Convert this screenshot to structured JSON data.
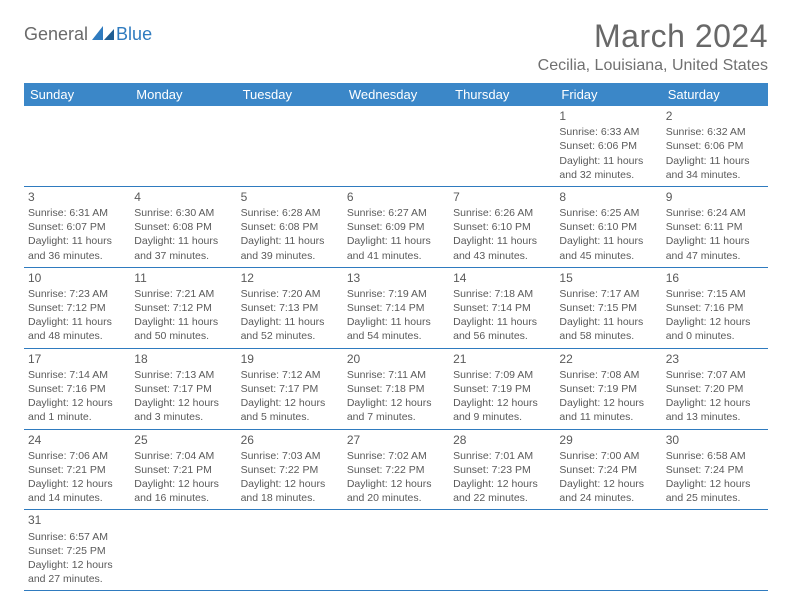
{
  "brand": {
    "part1": "General",
    "part2": "Blue"
  },
  "title": "March 2024",
  "location": "Cecilia, Louisiana, United States",
  "colors": {
    "header_bg": "#3b87c8",
    "header_text": "#ffffff",
    "border": "#2f7bbf",
    "text": "#5a5a5a",
    "title_text": "#686868"
  },
  "weekdays": [
    "Sunday",
    "Monday",
    "Tuesday",
    "Wednesday",
    "Thursday",
    "Friday",
    "Saturday"
  ],
  "weeks": [
    [
      null,
      null,
      null,
      null,
      null,
      {
        "day": "1",
        "sunrise": "Sunrise: 6:33 AM",
        "sunset": "Sunset: 6:06 PM",
        "daylight": "Daylight: 11 hours and 32 minutes."
      },
      {
        "day": "2",
        "sunrise": "Sunrise: 6:32 AM",
        "sunset": "Sunset: 6:06 PM",
        "daylight": "Daylight: 11 hours and 34 minutes."
      }
    ],
    [
      {
        "day": "3",
        "sunrise": "Sunrise: 6:31 AM",
        "sunset": "Sunset: 6:07 PM",
        "daylight": "Daylight: 11 hours and 36 minutes."
      },
      {
        "day": "4",
        "sunrise": "Sunrise: 6:30 AM",
        "sunset": "Sunset: 6:08 PM",
        "daylight": "Daylight: 11 hours and 37 minutes."
      },
      {
        "day": "5",
        "sunrise": "Sunrise: 6:28 AM",
        "sunset": "Sunset: 6:08 PM",
        "daylight": "Daylight: 11 hours and 39 minutes."
      },
      {
        "day": "6",
        "sunrise": "Sunrise: 6:27 AM",
        "sunset": "Sunset: 6:09 PM",
        "daylight": "Daylight: 11 hours and 41 minutes."
      },
      {
        "day": "7",
        "sunrise": "Sunrise: 6:26 AM",
        "sunset": "Sunset: 6:10 PM",
        "daylight": "Daylight: 11 hours and 43 minutes."
      },
      {
        "day": "8",
        "sunrise": "Sunrise: 6:25 AM",
        "sunset": "Sunset: 6:10 PM",
        "daylight": "Daylight: 11 hours and 45 minutes."
      },
      {
        "day": "9",
        "sunrise": "Sunrise: 6:24 AM",
        "sunset": "Sunset: 6:11 PM",
        "daylight": "Daylight: 11 hours and 47 minutes."
      }
    ],
    [
      {
        "day": "10",
        "sunrise": "Sunrise: 7:23 AM",
        "sunset": "Sunset: 7:12 PM",
        "daylight": "Daylight: 11 hours and 48 minutes."
      },
      {
        "day": "11",
        "sunrise": "Sunrise: 7:21 AM",
        "sunset": "Sunset: 7:12 PM",
        "daylight": "Daylight: 11 hours and 50 minutes."
      },
      {
        "day": "12",
        "sunrise": "Sunrise: 7:20 AM",
        "sunset": "Sunset: 7:13 PM",
        "daylight": "Daylight: 11 hours and 52 minutes."
      },
      {
        "day": "13",
        "sunrise": "Sunrise: 7:19 AM",
        "sunset": "Sunset: 7:14 PM",
        "daylight": "Daylight: 11 hours and 54 minutes."
      },
      {
        "day": "14",
        "sunrise": "Sunrise: 7:18 AM",
        "sunset": "Sunset: 7:14 PM",
        "daylight": "Daylight: 11 hours and 56 minutes."
      },
      {
        "day": "15",
        "sunrise": "Sunrise: 7:17 AM",
        "sunset": "Sunset: 7:15 PM",
        "daylight": "Daylight: 11 hours and 58 minutes."
      },
      {
        "day": "16",
        "sunrise": "Sunrise: 7:15 AM",
        "sunset": "Sunset: 7:16 PM",
        "daylight": "Daylight: 12 hours and 0 minutes."
      }
    ],
    [
      {
        "day": "17",
        "sunrise": "Sunrise: 7:14 AM",
        "sunset": "Sunset: 7:16 PM",
        "daylight": "Daylight: 12 hours and 1 minute."
      },
      {
        "day": "18",
        "sunrise": "Sunrise: 7:13 AM",
        "sunset": "Sunset: 7:17 PM",
        "daylight": "Daylight: 12 hours and 3 minutes."
      },
      {
        "day": "19",
        "sunrise": "Sunrise: 7:12 AM",
        "sunset": "Sunset: 7:17 PM",
        "daylight": "Daylight: 12 hours and 5 minutes."
      },
      {
        "day": "20",
        "sunrise": "Sunrise: 7:11 AM",
        "sunset": "Sunset: 7:18 PM",
        "daylight": "Daylight: 12 hours and 7 minutes."
      },
      {
        "day": "21",
        "sunrise": "Sunrise: 7:09 AM",
        "sunset": "Sunset: 7:19 PM",
        "daylight": "Daylight: 12 hours and 9 minutes."
      },
      {
        "day": "22",
        "sunrise": "Sunrise: 7:08 AM",
        "sunset": "Sunset: 7:19 PM",
        "daylight": "Daylight: 12 hours and 11 minutes."
      },
      {
        "day": "23",
        "sunrise": "Sunrise: 7:07 AM",
        "sunset": "Sunset: 7:20 PM",
        "daylight": "Daylight: 12 hours and 13 minutes."
      }
    ],
    [
      {
        "day": "24",
        "sunrise": "Sunrise: 7:06 AM",
        "sunset": "Sunset: 7:21 PM",
        "daylight": "Daylight: 12 hours and 14 minutes."
      },
      {
        "day": "25",
        "sunrise": "Sunrise: 7:04 AM",
        "sunset": "Sunset: 7:21 PM",
        "daylight": "Daylight: 12 hours and 16 minutes."
      },
      {
        "day": "26",
        "sunrise": "Sunrise: 7:03 AM",
        "sunset": "Sunset: 7:22 PM",
        "daylight": "Daylight: 12 hours and 18 minutes."
      },
      {
        "day": "27",
        "sunrise": "Sunrise: 7:02 AM",
        "sunset": "Sunset: 7:22 PM",
        "daylight": "Daylight: 12 hours and 20 minutes."
      },
      {
        "day": "28",
        "sunrise": "Sunrise: 7:01 AM",
        "sunset": "Sunset: 7:23 PM",
        "daylight": "Daylight: 12 hours and 22 minutes."
      },
      {
        "day": "29",
        "sunrise": "Sunrise: 7:00 AM",
        "sunset": "Sunset: 7:24 PM",
        "daylight": "Daylight: 12 hours and 24 minutes."
      },
      {
        "day": "30",
        "sunrise": "Sunrise: 6:58 AM",
        "sunset": "Sunset: 7:24 PM",
        "daylight": "Daylight: 12 hours and 25 minutes."
      }
    ],
    [
      {
        "day": "31",
        "sunrise": "Sunrise: 6:57 AM",
        "sunset": "Sunset: 7:25 PM",
        "daylight": "Daylight: 12 hours and 27 minutes."
      },
      null,
      null,
      null,
      null,
      null,
      null
    ]
  ]
}
